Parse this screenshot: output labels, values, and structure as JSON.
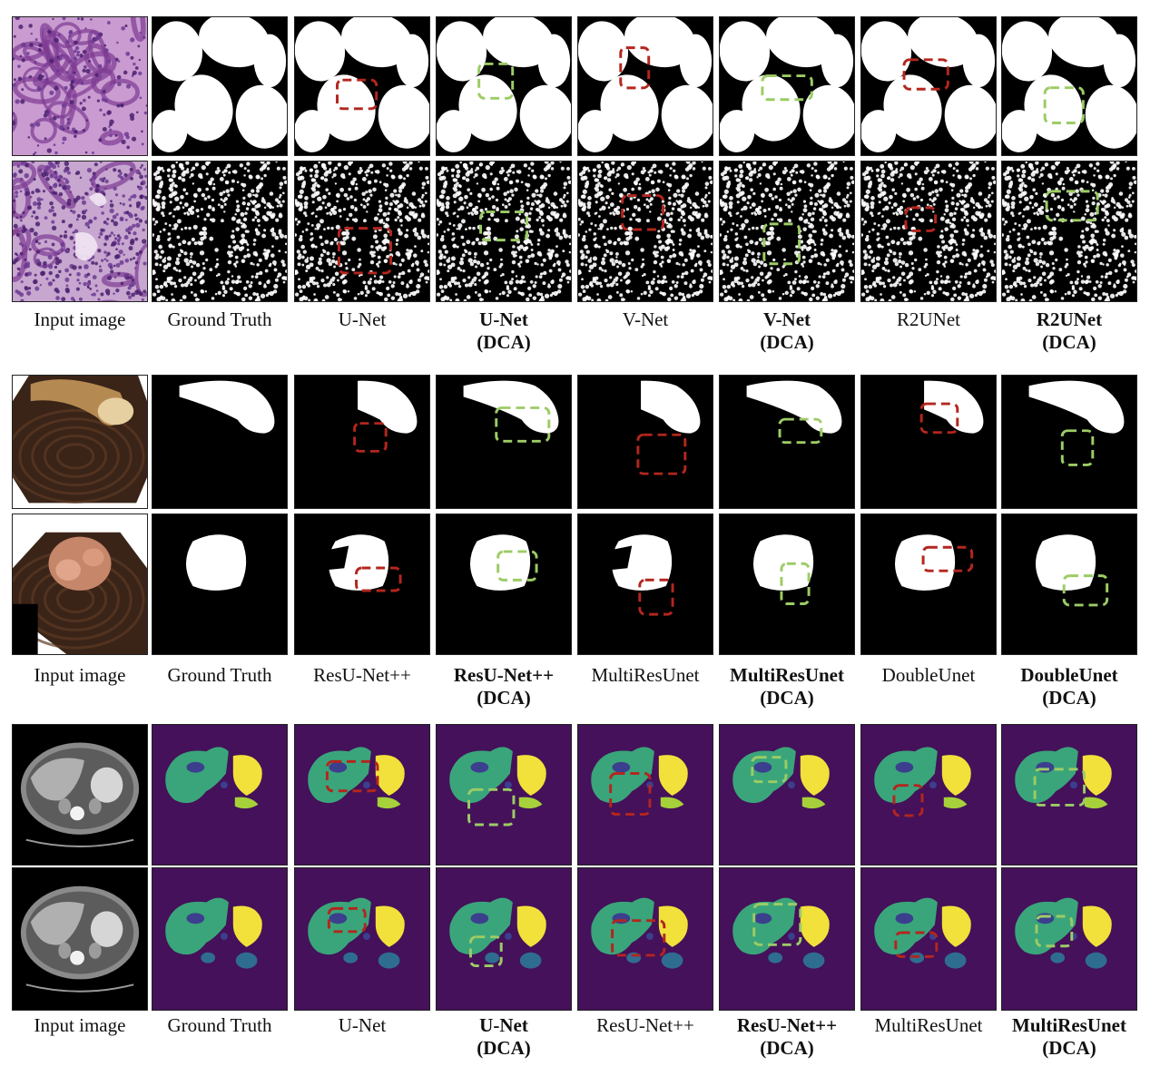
{
  "figure": {
    "sections": [
      {
        "id": "histology",
        "kind": "binary-sparse",
        "rows": 2,
        "columns": [
          {
            "line1": "Input image",
            "line2": "",
            "bold": false,
            "box": "none"
          },
          {
            "line1": "Ground Truth",
            "line2": "",
            "bold": false,
            "box": "none"
          },
          {
            "line1": "U-Net",
            "line2": "",
            "bold": false,
            "box": "red"
          },
          {
            "line1": "U-Net",
            "line2": "(DCA)",
            "bold": true,
            "box": "green"
          },
          {
            "line1": "V-Net",
            "line2": "",
            "bold": false,
            "box": "red"
          },
          {
            "line1": "V-Net",
            "line2": "(DCA)",
            "bold": true,
            "box": "green"
          },
          {
            "line1": "R2UNet",
            "line2": "",
            "bold": false,
            "box": "red"
          },
          {
            "line1": "R2UNet",
            "line2": "(DCA)",
            "bold": true,
            "box": "green"
          }
        ]
      },
      {
        "id": "polyp",
        "kind": "binary-blob",
        "rows": 2,
        "columns": [
          {
            "line1": "Input image",
            "line2": "",
            "bold": false,
            "box": "none"
          },
          {
            "line1": "Ground Truth",
            "line2": "",
            "bold": false,
            "box": "none"
          },
          {
            "line1": "ResU-Net++",
            "line2": "",
            "bold": false,
            "box": "red"
          },
          {
            "line1": "ResU-Net++",
            "line2": "(DCA)",
            "bold": true,
            "box": "green"
          },
          {
            "line1": "MultiResUnet",
            "line2": "",
            "bold": false,
            "box": "red"
          },
          {
            "line1": "MultiResUnet",
            "line2": "(DCA)",
            "bold": true,
            "box": "green"
          },
          {
            "line1": "DoubleUnet",
            "line2": "",
            "bold": false,
            "box": "red"
          },
          {
            "line1": "DoubleUnet",
            "line2": "(DCA)",
            "bold": true,
            "box": "green"
          }
        ]
      },
      {
        "id": "ct",
        "kind": "multi-organ",
        "rows": 2,
        "columns": [
          {
            "line1": "Input image",
            "line2": "",
            "bold": false,
            "box": "none"
          },
          {
            "line1": "Ground Truth",
            "line2": "",
            "bold": false,
            "box": "none"
          },
          {
            "line1": "U-Net",
            "line2": "",
            "bold": false,
            "box": "red"
          },
          {
            "line1": "U-Net",
            "line2": "(DCA)",
            "bold": true,
            "box": "green"
          },
          {
            "line1": "ResU-Net++",
            "line2": "",
            "bold": false,
            "box": "red"
          },
          {
            "line1": "ResU-Net++",
            "line2": "(DCA)",
            "bold": true,
            "box": "green"
          },
          {
            "line1": "MultiResUnet",
            "line2": "",
            "bold": false,
            "box": "red"
          },
          {
            "line1": "MultiResUnet",
            "line2": "(DCA)",
            "bold": true,
            "box": "green"
          }
        ]
      }
    ],
    "colors": {
      "error_box": "#b3261e",
      "improved_box": "#9ccc65",
      "mask_fg": "#ffffff",
      "mask_bg": "#000000",
      "ct_background": "#44115a",
      "ct_liver": "#3aa57a",
      "ct_stomach": "#f2e13a",
      "ct_spleen": "#a6d13a",
      "ct_kidney": "#2f6d90",
      "ct_vessel": "#3b3f8e"
    }
  }
}
